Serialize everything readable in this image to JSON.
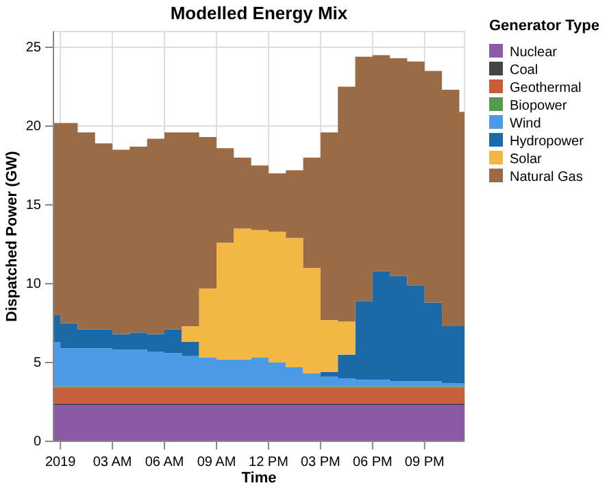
{
  "chart_data": {
    "type": "area",
    "stacked": true,
    "title": "Modelled Energy Mix",
    "xlabel": "Time",
    "ylabel": "Dispatched Power (GW)",
    "legend_title": "Generator Type",
    "legend": "right",
    "grid": true,
    "line_style": "step",
    "x": [
      "2018-12-31T23:36",
      "2019-01-01T00:00",
      "2019-01-01T01:00",
      "2019-01-01T02:00",
      "2019-01-01T03:00",
      "2019-01-01T04:00",
      "2019-01-01T05:00",
      "2019-01-01T06:00",
      "2019-01-01T07:00",
      "2019-01-01T08:00",
      "2019-01-01T09:00",
      "2019-01-01T10:00",
      "2019-01-01T11:00",
      "2019-01-01T12:00",
      "2019-01-01T13:00",
      "2019-01-01T14:00",
      "2019-01-01T15:00",
      "2019-01-01T16:00",
      "2019-01-01T17:00",
      "2019-01-01T18:00",
      "2019-01-01T19:00",
      "2019-01-01T20:00",
      "2019-01-01T21:00",
      "2019-01-01T22:00",
      "2019-01-01T23:00",
      "2019-01-01T23:18"
    ],
    "xlim": [
      "2018-12-31T23:36",
      "2019-01-01T23:18"
    ],
    "xticks": [
      {
        "value": "2019-01-01T00:00",
        "label": "2019"
      },
      {
        "value": "2019-01-01T03:00",
        "label": "03 AM"
      },
      {
        "value": "2019-01-01T06:00",
        "label": "06 AM"
      },
      {
        "value": "2019-01-01T09:00",
        "label": "09 AM"
      },
      {
        "value": "2019-01-01T12:00",
        "label": "12 PM"
      },
      {
        "value": "2019-01-01T15:00",
        "label": "03 PM"
      },
      {
        "value": "2019-01-01T18:00",
        "label": "06 PM"
      },
      {
        "value": "2019-01-01T21:00",
        "label": "09 PM"
      }
    ],
    "ylim": [
      0,
      26
    ],
    "yticks": [
      0,
      5,
      10,
      15,
      20,
      25
    ],
    "series": [
      {
        "name": "Nuclear",
        "color": "#8c5aa6",
        "values": [
          2.3,
          2.3,
          2.3,
          2.3,
          2.3,
          2.3,
          2.3,
          2.3,
          2.3,
          2.3,
          2.3,
          2.3,
          2.3,
          2.3,
          2.3,
          2.3,
          2.3,
          2.3,
          2.3,
          2.3,
          2.3,
          2.3,
          2.3,
          2.3,
          2.3,
          2.3
        ]
      },
      {
        "name": "Coal",
        "color": "#444444",
        "values": [
          0.1,
          0.1,
          0.1,
          0.1,
          0.1,
          0.1,
          0.1,
          0.1,
          0.1,
          0.1,
          0.1,
          0.1,
          0.1,
          0.1,
          0.1,
          0.1,
          0.1,
          0.1,
          0.1,
          0.1,
          0.1,
          0.1,
          0.1,
          0.1,
          0.1,
          0.1
        ]
      },
      {
        "name": "Geothermal",
        "color": "#c75e3b",
        "values": [
          1.0,
          1.0,
          1.0,
          1.0,
          1.0,
          1.0,
          1.0,
          1.0,
          1.0,
          1.0,
          1.0,
          1.0,
          1.0,
          1.0,
          1.0,
          1.0,
          1.0,
          1.0,
          1.0,
          1.0,
          1.0,
          1.0,
          1.0,
          1.0,
          1.0,
          1.0
        ]
      },
      {
        "name": "Biopower",
        "color": "#55994f",
        "values": [
          0.1,
          0.1,
          0.1,
          0.1,
          0.1,
          0.1,
          0.1,
          0.1,
          0.1,
          0.1,
          0.1,
          0.1,
          0.1,
          0.1,
          0.1,
          0.1,
          0.1,
          0.1,
          0.1,
          0.1,
          0.1,
          0.1,
          0.1,
          0.1,
          0.1,
          0.1
        ]
      },
      {
        "name": "Wind",
        "color": "#4b9be6",
        "values": [
          2.8,
          2.4,
          2.4,
          2.4,
          2.3,
          2.3,
          2.2,
          2.1,
          1.9,
          1.8,
          1.7,
          1.7,
          1.8,
          1.5,
          1.2,
          0.8,
          0.6,
          0.5,
          0.4,
          0.4,
          0.3,
          0.3,
          0.3,
          0.2,
          0.2,
          0.2
        ]
      },
      {
        "name": "Hydropower",
        "color": "#1c69a8",
        "values": [
          1.7,
          1.6,
          1.2,
          1.2,
          1.0,
          1.1,
          1.1,
          1.5,
          0.9,
          0,
          0,
          0,
          0,
          0,
          0,
          0,
          0.3,
          1.5,
          5.0,
          6.9,
          6.7,
          6.1,
          5.0,
          3.6,
          3.6,
          3.6
        ]
      },
      {
        "name": "Solar",
        "color": "#f2b843",
        "values": [
          0,
          0,
          0,
          0,
          0,
          0,
          0,
          0,
          1.0,
          4.4,
          7.4,
          8.3,
          8.1,
          8.3,
          8.2,
          6.7,
          3.3,
          2.1,
          0,
          0,
          0,
          0,
          0,
          0,
          0,
          0
        ]
      },
      {
        "name": "Natural Gas",
        "color": "#9a6b44",
        "values": [
          12.2,
          12.7,
          12.5,
          11.8,
          11.7,
          11.8,
          12.4,
          12.5,
          12.3,
          9.6,
          6.0,
          4.5,
          4.1,
          3.7,
          4.3,
          7.0,
          11.9,
          14.9,
          15.5,
          13.7,
          13.8,
          14.2,
          14.7,
          15.0,
          13.6,
          13.6
        ]
      }
    ]
  }
}
